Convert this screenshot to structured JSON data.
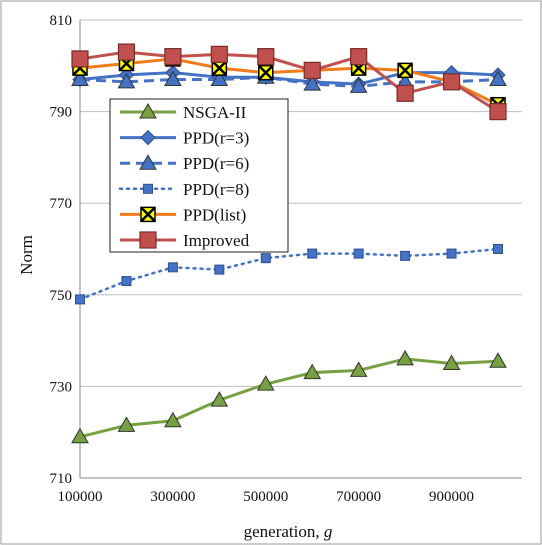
{
  "chart_data": {
    "type": "line",
    "xlabel": "generation, ",
    "xlabel_var": "g",
    "ylabel": "Norm",
    "xlim": [
      100000,
      1000000
    ],
    "ylim": [
      710,
      810
    ],
    "y_ticks": [
      "710",
      "730",
      "750",
      "770",
      "790",
      "810"
    ],
    "x_ticks": [
      "100000",
      "300000",
      "500000",
      "700000",
      "900000"
    ],
    "grid": "horizontal",
    "legend_position": "upper-left inside",
    "x": [
      100000,
      200000,
      300000,
      400000,
      500000,
      600000,
      700000,
      800000,
      900000,
      1000000
    ],
    "series": [
      {
        "name": "NSGA-II",
        "color": "#77A043",
        "marker": "triangle",
        "line": "solid",
        "values": [
          719,
          721.5,
          722.5,
          727,
          730.5,
          733,
          733.5,
          736,
          735,
          735.5
        ]
      },
      {
        "name": "PPD(r=3)",
        "color": "#4472C4",
        "marker": "diamond",
        "line": "solid",
        "values": [
          797,
          798,
          798.5,
          797.5,
          797.5,
          796.5,
          796,
          798.5,
          798.5,
          798
        ]
      },
      {
        "name": "PPD(r=6)",
        "color": "#4472C4",
        "marker": "triangle",
        "line": "dash",
        "values": [
          797,
          796.5,
          797,
          797,
          797.5,
          796,
          795.5,
          796.5,
          796.5,
          797
        ]
      },
      {
        "name": "PPD(r=8)",
        "color": "#4472C4",
        "marker": "square",
        "line": "dot",
        "values": [
          749,
          753,
          756,
          755.5,
          758,
          759,
          759,
          758.5,
          759,
          760
        ]
      },
      {
        "name": "PPD(list)",
        "color": "#F07C1B",
        "marker": "xbox",
        "line": "solid",
        "values": [
          799.5,
          800.5,
          801.5,
          799.5,
          798.5,
          799,
          799.5,
          799,
          796.5,
          791.5
        ]
      },
      {
        "name": "Improved",
        "color": "#C0504D",
        "marker": "square-big",
        "line": "solid",
        "values": [
          801.5,
          803,
          802,
          802.5,
          802,
          799,
          802,
          794,
          796.5,
          790
        ]
      }
    ]
  }
}
